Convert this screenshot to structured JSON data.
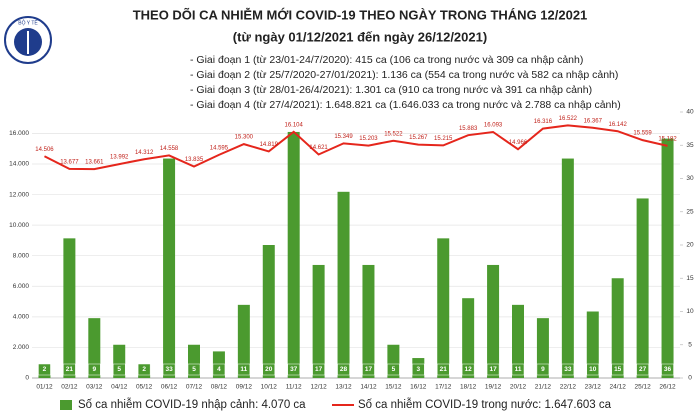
{
  "logo": "BỘ Y TẾ",
  "chart_data": {
    "type": "bar",
    "title": "THEO DÕI CA NHIỄM MỚI COVID-19 THEO NGÀY TRONG THÁNG 12/2021",
    "subtitle": "(từ ngày 01/12/2021 đến ngày 26/12/2021)",
    "notes": [
      "- Giai đoạn 1 (từ 23/01-24/7/2020): 415 ca (106 ca trong nước và 309 ca nhập cảnh)",
      "- Giai đoạn 2 (từ 25/7/2020-27/01/2021): 1.136 ca (554 ca trong nước và 582 ca nhập cảnh)",
      "- Giai đoạn 3 (từ 28/01-26/4/2021): 1.301 ca (910 ca trong nước và 391 ca nhập cảnh)",
      "- Giai đoạn 4 (từ 27/4/2021): 1.648.821 ca (1.646.033 ca trong nước và 2.788 ca nhập cảnh)"
    ],
    "categories": [
      "01/12",
      "02/12",
      "03/12",
      "04/12",
      "05/12",
      "06/12",
      "07/12",
      "08/12",
      "09/12",
      "10/12",
      "11/12",
      "12/12",
      "13/12",
      "14/12",
      "15/12",
      "16/12",
      "17/12",
      "18/12",
      "19/12",
      "20/12",
      "21/12",
      "22/12",
      "23/12",
      "24/12",
      "25/12",
      "26/12"
    ],
    "series": [
      {
        "name": "Số ca nhiễm COVID-19 nhập cảnh: 4.070 ca",
        "type": "bar",
        "axis": "y2",
        "color": "#4b9a2f",
        "values": [
          2,
          21,
          9,
          5,
          2,
          33,
          5,
          4,
          11,
          20,
          37,
          17,
          28,
          17,
          5,
          3,
          21,
          12,
          17,
          11,
          9,
          33,
          10,
          15,
          27,
          36
        ]
      },
      {
        "name": "Số ca nhiễm COVID-19 trong nước: 1.647.603 ca",
        "type": "line",
        "color": "#e5261c",
        "values": [
          14506,
          13677,
          13661,
          13992,
          14312,
          14558,
          13835,
          14595,
          15300,
          14819,
          16104,
          14621,
          15349,
          15203,
          15522,
          15267,
          15215,
          15883,
          16093,
          14966,
          16316,
          16522,
          16367,
          16142,
          15559,
          15182
        ],
        "value_labels": [
          "14.506",
          "13.677",
          "13.661",
          "13.992",
          "14.312",
          "14.558",
          "13.835",
          "14.595",
          "15.300",
          "14.819",
          "16.104",
          "14.621",
          "15.349",
          "15.203",
          "15.522",
          "15.267",
          "15.215",
          "15.883",
          "16.093",
          "14.966",
          "16.316",
          "16.522",
          "16.367",
          "16.142",
          "15.559",
          "15.182"
        ]
      }
    ],
    "ylim": [
      0,
      17400
    ],
    "yticks": [
      0,
      {
        "value": 2000,
        "label": "2.000"
      },
      {
        "value": 4000,
        "label": "4.000"
      },
      {
        "value": 6000,
        "label": "6.000"
      },
      {
        "value": 8000,
        "label": "8.000"
      },
      {
        "value": 10000,
        "label": "10.000"
      },
      {
        "value": 12000,
        "label": "12.000"
      },
      {
        "value": 14000,
        "label": "14.000"
      },
      {
        "value": 16000,
        "label": "16.000"
      }
    ],
    "y2lim": [
      0,
      40
    ],
    "y2ticks": [
      0,
      5,
      10,
      15,
      20,
      25,
      30,
      35,
      40
    ],
    "grid": true
  }
}
